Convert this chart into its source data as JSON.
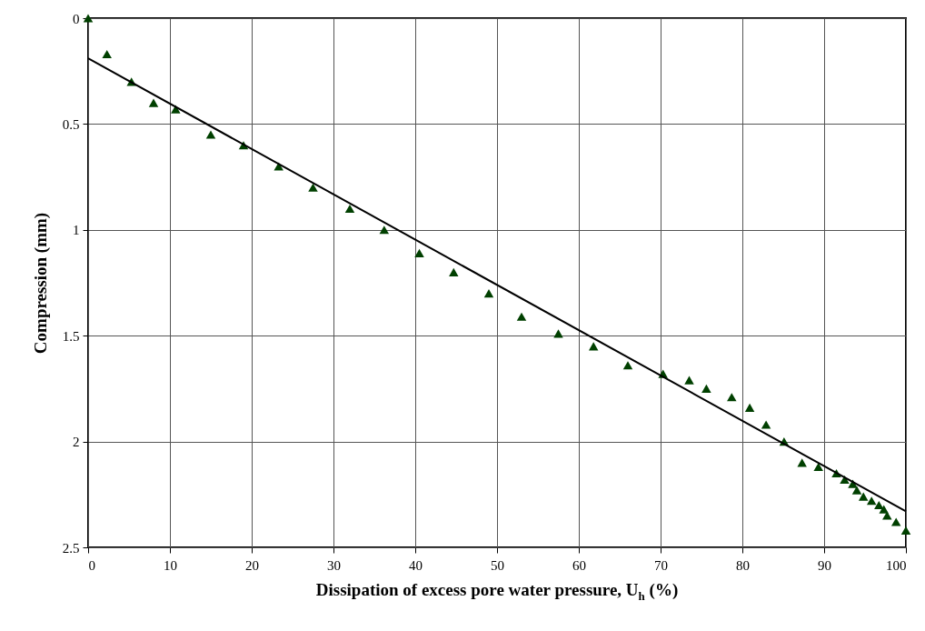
{
  "chart_data": {
    "type": "scatter",
    "xlabel": "Dissipation of excess pore water pressure, U$_{h}$ (%)",
    "ylabel": "Compression (mm)",
    "xlim": [
      0,
      100
    ],
    "xticks": [
      0,
      10,
      20,
      30,
      40,
      50,
      60,
      70,
      80,
      90,
      100
    ],
    "ylim": [
      2.5,
      0
    ],
    "yticks": [
      0,
      0.5,
      1,
      1.5,
      2,
      2.5
    ],
    "grid": true,
    "series": [
      {
        "color": "#004000",
        "marker": "triangle",
        "x": [
          0,
          2.3,
          5.3,
          8,
          10.7,
          15,
          19,
          23.3,
          27.5,
          32,
          36.2,
          40.5,
          44.7,
          49,
          53,
          57.5,
          61.8,
          66,
          70.3,
          73.5,
          75.6,
          78.7,
          80.9,
          82.9,
          85.1,
          87.3,
          89.3,
          91.5,
          92.5,
          93.5,
          94,
          94.8,
          95.8,
          96.7,
          97.3,
          97.7,
          98.8,
          100
        ],
        "values": [
          0,
          0.17,
          0.3,
          0.4,
          0.43,
          0.55,
          0.6,
          0.7,
          0.8,
          0.9,
          1.0,
          1.11,
          1.2,
          1.3,
          1.41,
          1.49,
          1.55,
          1.64,
          1.68,
          1.71,
          1.75,
          1.79,
          1.84,
          1.92,
          2.0,
          2.1,
          2.12,
          2.15,
          2.18,
          2.2,
          2.23,
          2.26,
          2.28,
          2.3,
          2.32,
          2.35,
          2.38,
          2.42
        ]
      },
      {
        "type": "line",
        "color": "#000000",
        "marker": "none",
        "line_style": "solid",
        "x": [
          0,
          100
        ],
        "values": [
          0.19,
          2.33
        ]
      }
    ]
  }
}
